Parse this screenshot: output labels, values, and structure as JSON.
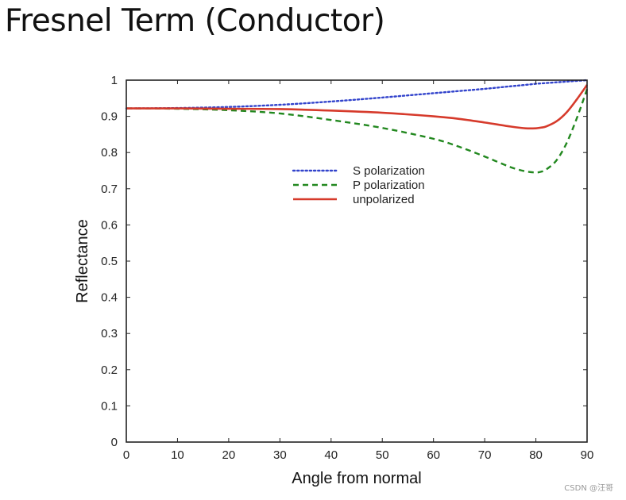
{
  "page": {
    "title": "Fresnel Term (Conductor)"
  },
  "watermark": "CSDN @汪哥",
  "chart_data": {
    "type": "line",
    "title": "",
    "xlabel": "Angle from normal",
    "ylabel": "Reflectance",
    "xlim": [
      0,
      90
    ],
    "ylim": [
      0,
      1
    ],
    "xticks": [
      0,
      10,
      20,
      30,
      40,
      50,
      60,
      70,
      80,
      90
    ],
    "yticks": [
      0,
      0.1,
      0.2,
      0.3,
      0.4,
      0.5,
      0.6,
      0.7,
      0.8,
      0.9,
      1
    ],
    "ytick_labels": [
      "0",
      "0.1",
      "0.2",
      "0.3",
      "0.4",
      "0.5",
      "0.6",
      "0.7",
      "0.8",
      "0.9",
      "1"
    ],
    "legend_position": "center",
    "x": [
      0,
      10,
      20,
      30,
      40,
      50,
      60,
      65,
      70,
      75,
      78,
      80,
      81,
      82,
      84,
      86,
      88,
      90
    ],
    "series": [
      {
        "name": "S polarization",
        "color": "#3344cc",
        "style": "dotted",
        "values": [
          0.922,
          0.923,
          0.926,
          0.932,
          0.941,
          0.952,
          0.964,
          0.97,
          0.976,
          0.983,
          0.987,
          0.99,
          0.991,
          0.992,
          0.994,
          0.996,
          0.998,
          1.0
        ]
      },
      {
        "name": "P polarization",
        "color": "#22881f",
        "style": "dashed",
        "values": [
          0.922,
          0.921,
          0.917,
          0.908,
          0.89,
          0.868,
          0.838,
          0.816,
          0.789,
          0.76,
          0.748,
          0.745,
          0.747,
          0.753,
          0.778,
          0.826,
          0.895,
          0.975
        ]
      },
      {
        "name": "unpolarized",
        "color": "#d63a2b",
        "style": "solid",
        "values": [
          0.922,
          0.922,
          0.921,
          0.92,
          0.916,
          0.91,
          0.9,
          0.893,
          0.883,
          0.872,
          0.867,
          0.867,
          0.869,
          0.872,
          0.886,
          0.911,
          0.947,
          0.987
        ]
      }
    ]
  }
}
